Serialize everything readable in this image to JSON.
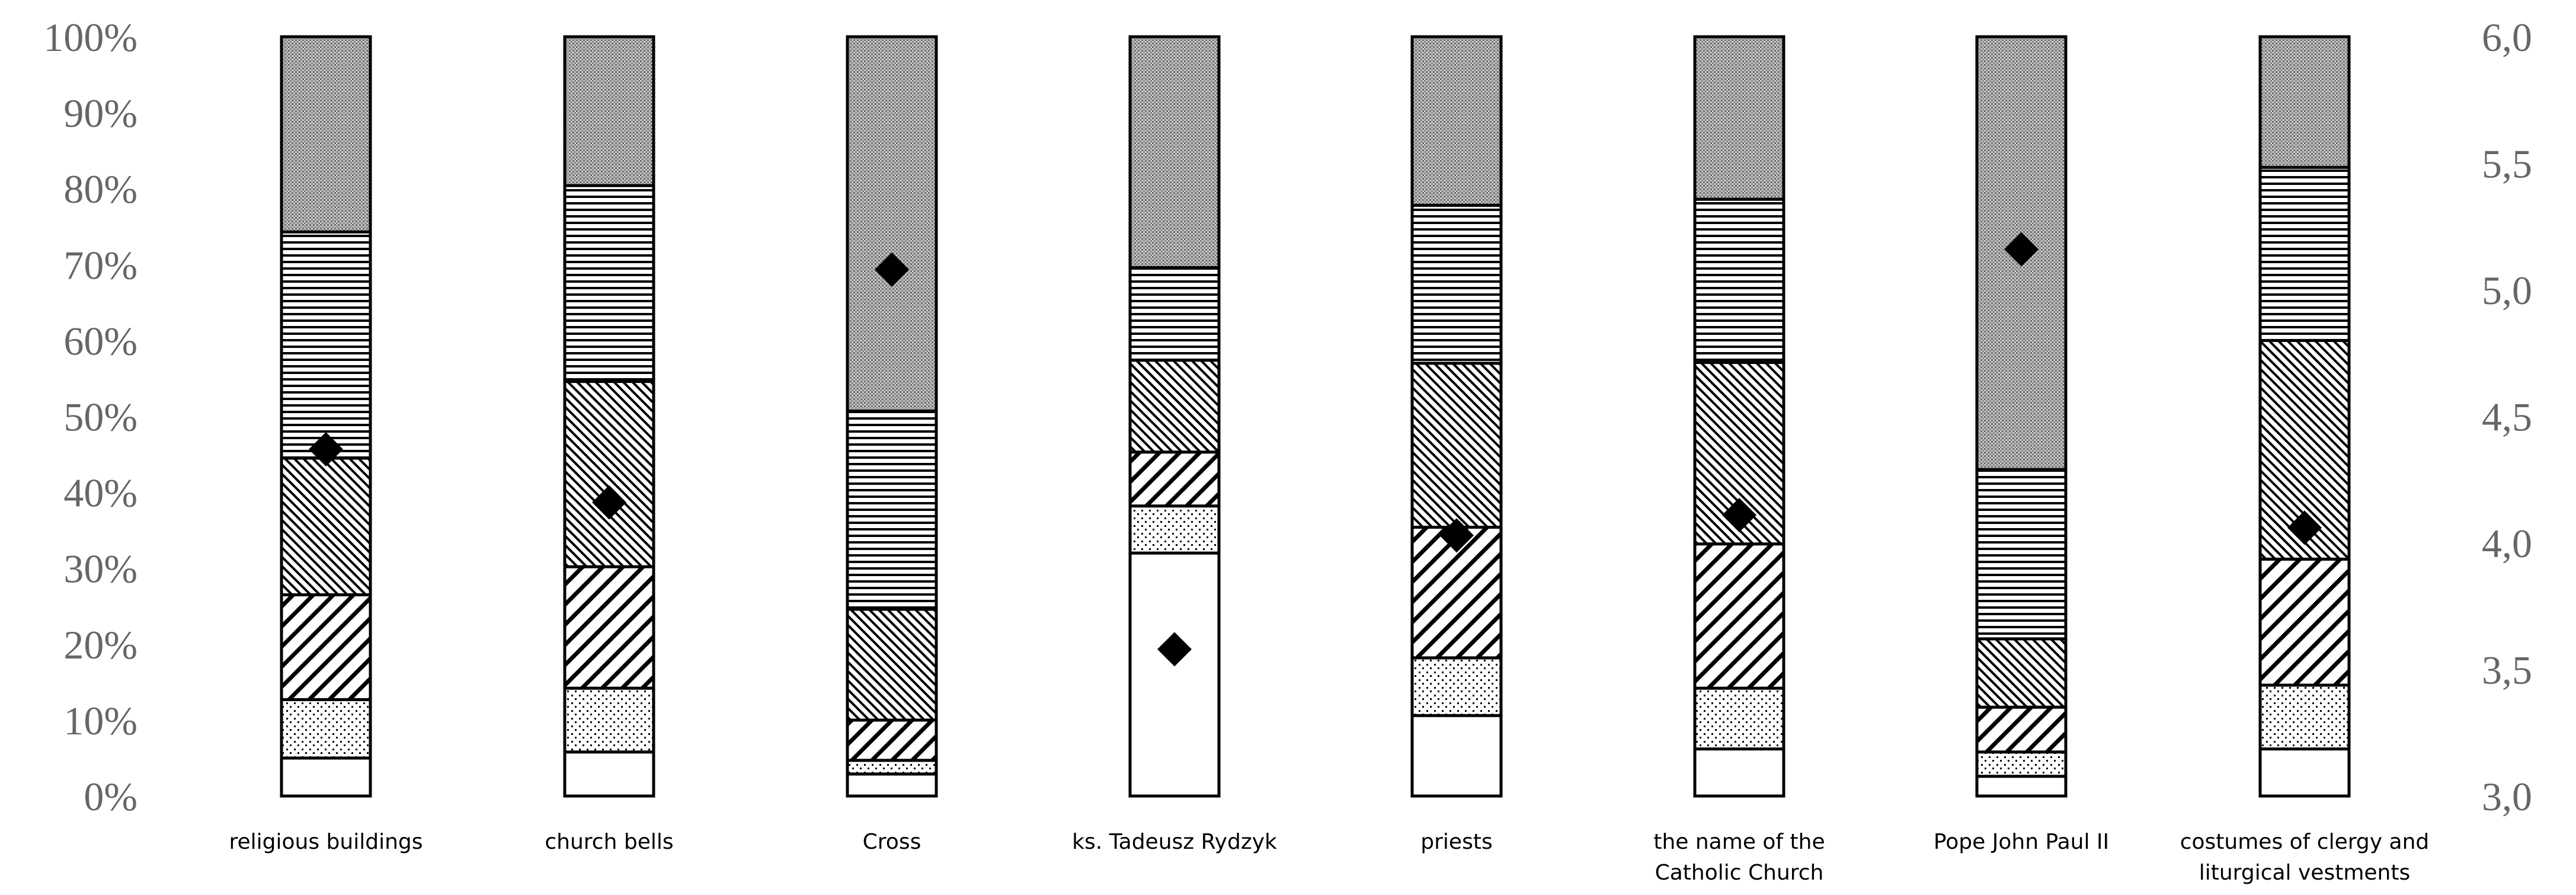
{
  "chart_data": {
    "type": "bar",
    "stacked": true,
    "categories": [
      [
        "religious buildings"
      ],
      [
        "church bells"
      ],
      [
        "Cross"
      ],
      [
        "ks. Tadeusz Rydzyk"
      ],
      [
        "priests"
      ],
      [
        "the name of the",
        "Catholic Church"
      ],
      [
        "Pope John Paul II"
      ],
      [
        "costumes of clergy and",
        "liturgical vestments"
      ]
    ],
    "series": [
      {
        "pattern": "blank",
        "values": [
          5.0,
          5.8,
          2.9,
          32.0,
          10.6,
          6.2,
          2.6,
          6.2
        ]
      },
      {
        "pattern": "dots-sparse",
        "values": [
          7.7,
          8.4,
          1.8,
          6.2,
          7.6,
          8.0,
          3.2,
          8.4
        ]
      },
      {
        "pattern": "hatch-wide",
        "values": [
          13.8,
          16.0,
          5.3,
          7.1,
          17.2,
          19.0,
          5.9,
          16.6
        ]
      },
      {
        "pattern": "hatch-dense",
        "values": [
          18.0,
          24.4,
          14.6,
          12.1,
          21.6,
          23.9,
          9.0,
          28.8
        ]
      },
      {
        "pattern": "horizontal",
        "values": [
          29.8,
          25.8,
          26.1,
          12.2,
          20.8,
          21.5,
          22.3,
          22.8
        ]
      },
      {
        "pattern": "dots-dense",
        "values": [
          25.7,
          19.6,
          49.3,
          30.4,
          22.2,
          21.4,
          57.0,
          17.2
        ]
      }
    ],
    "mean_marker": {
      "shape": "diamond",
      "axis": "right",
      "values": [
        4.37,
        4.16,
        5.08,
        3.58,
        4.03,
        4.11,
        5.16,
        4.06
      ]
    },
    "left_axis": {
      "range": [
        0,
        100
      ],
      "ticks": [
        "0%",
        "10%",
        "20%",
        "30%",
        "40%",
        "50%",
        "60%",
        "70%",
        "80%",
        "90%",
        "100%"
      ]
    },
    "right_axis": {
      "range": [
        3.0,
        6.0
      ],
      "ticks": [
        "3,0",
        "3,5",
        "4,0",
        "4,5",
        "5,0",
        "5,5",
        "6,0"
      ]
    },
    "grid": false,
    "legend": "none"
  }
}
